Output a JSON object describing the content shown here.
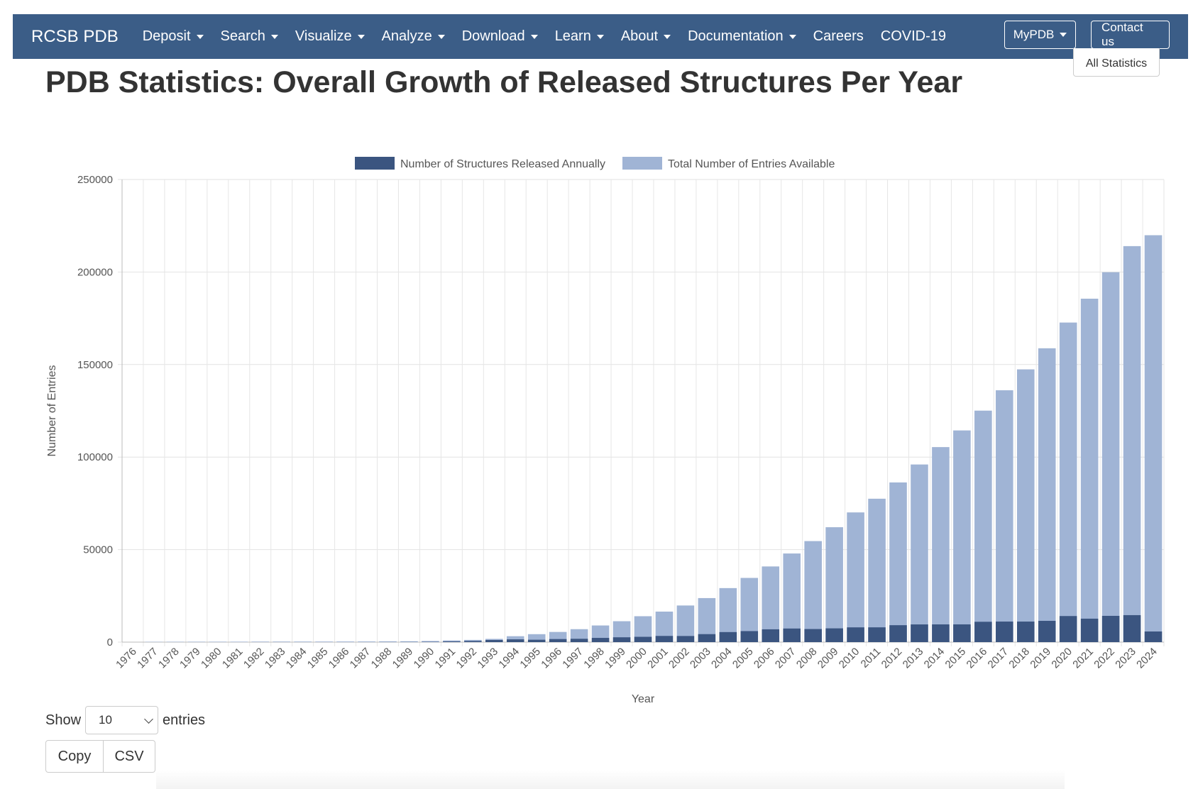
{
  "navbar": {
    "brand": "RCSB PDB",
    "items": [
      {
        "label": "Deposit",
        "dropdown": true
      },
      {
        "label": "Search",
        "dropdown": true
      },
      {
        "label": "Visualize",
        "dropdown": true
      },
      {
        "label": "Analyze",
        "dropdown": true
      },
      {
        "label": "Download",
        "dropdown": true
      },
      {
        "label": "Learn",
        "dropdown": true
      },
      {
        "label": "About",
        "dropdown": true
      },
      {
        "label": "Documentation",
        "dropdown": true
      },
      {
        "label": "Careers",
        "dropdown": false
      },
      {
        "label": "COVID-19",
        "dropdown": false
      }
    ],
    "mypdb_label": "MyPDB",
    "contact_label": "Contact us",
    "background": "#3b5d87"
  },
  "header": {
    "all_statistics_label": "All Statistics",
    "title": "PDB Statistics: Overall Growth of Released Structures Per Year"
  },
  "chart_data": {
    "type": "bar",
    "stacked": "overlaid",
    "categories": [
      "1976",
      "1977",
      "1978",
      "1979",
      "1980",
      "1981",
      "1982",
      "1983",
      "1984",
      "1985",
      "1986",
      "1987",
      "1988",
      "1989",
      "1990",
      "1991",
      "1992",
      "1993",
      "1994",
      "1995",
      "1996",
      "1997",
      "1998",
      "1999",
      "2000",
      "2001",
      "2002",
      "2003",
      "2004",
      "2005",
      "2006",
      "2007",
      "2008",
      "2009",
      "2010",
      "2011",
      "2012",
      "2013",
      "2014",
      "2015",
      "2016",
      "2017",
      "2018",
      "2019",
      "2020",
      "2021",
      "2022",
      "2023",
      "2024"
    ],
    "series": [
      {
        "name": "Number of Structures Released Annually",
        "color": "#3b5580",
        "values": [
          0,
          14,
          28,
          35,
          25,
          15,
          36,
          36,
          24,
          21,
          24,
          25,
          54,
          75,
          151,
          387,
          606,
          1147,
          1502,
          1295,
          1659,
          1800,
          2282,
          2614,
          2871,
          3343,
          3306,
          4318,
          5431,
          5956,
          6924,
          7351,
          7075,
          7441,
          7980,
          7993,
          9151,
          9566,
          9584,
          9593,
          10998,
          11109,
          11105,
          11495,
          14096,
          12676,
          14197,
          14586,
          5749
        ]
      },
      {
        "name": "Total Number of Entries Available",
        "color": "#a0b4d5",
        "values": [
          0,
          150,
          180,
          200,
          220,
          230,
          260,
          280,
          290,
          300,
          320,
          340,
          390,
          450,
          600,
          900,
          1200,
          1750,
          3200,
          4300,
          5500,
          7000,
          9000,
          11300,
          14000,
          16500,
          19800,
          23800,
          29200,
          34700,
          40900,
          47900,
          54600,
          62100,
          70100,
          77500,
          86300,
          96000,
          105400,
          114400,
          125100,
          136100,
          147400,
          158800,
          172700,
          185600,
          199900,
          214000,
          219900
        ]
      }
    ],
    "xlabel": "Year",
    "ylabel": "Number of Entries",
    "ylim": [
      0,
      250000
    ],
    "yticks": [
      "0",
      "50000",
      "100000",
      "150000",
      "200000",
      "250000"
    ],
    "grid": true,
    "legend": "top-center"
  },
  "table_controls": {
    "show_label": "Show",
    "entries_value": "10",
    "entries_label": "entries",
    "copy_label": "Copy",
    "csv_label": "CSV"
  }
}
